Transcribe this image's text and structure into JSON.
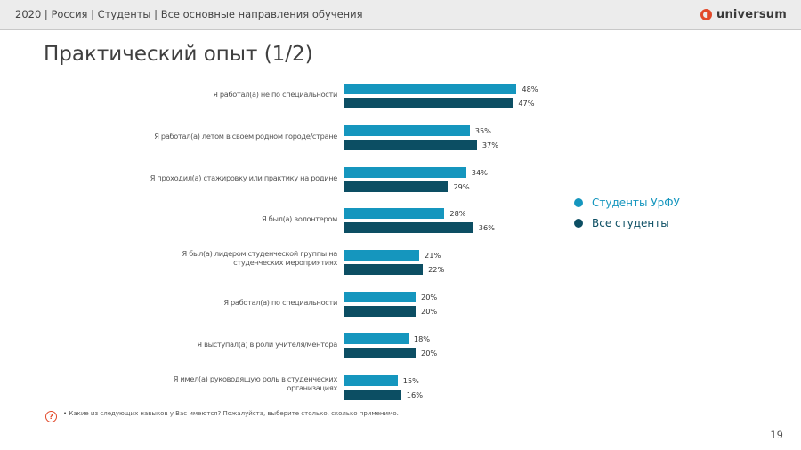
{
  "header": {
    "breadcrumb": "2020 | Россия | Студенты | Все основные направления обучения",
    "logo_text": "universum",
    "logo_icon": "universum-logo-icon"
  },
  "page_title": "Практический опыт (1/2)",
  "colors": {
    "series1": "#1596be",
    "series2": "#0c4e63",
    "accent": "#e2492a"
  },
  "chart_data": {
    "type": "bar",
    "orientation": "horizontal",
    "title": "",
    "xlabel": "",
    "ylabel": "",
    "xlim": [
      0,
      100
    ],
    "grid": false,
    "legend_position": "right",
    "categories": [
      "Я работал(а) не по специальности",
      "Я работал(а) летом в своем родном городе/стране",
      "Я проходил(а) стажировку или практику на родине",
      "Я был(а) волонтером",
      "Я был(а) лидером студенческой группы на студенческих мероприятиях",
      "Я работал(а) по специальности",
      "Я выступал(а) в роли учителя/ментора",
      "Я имел(а) руководящую роль в студенческих организациях"
    ],
    "series": [
      {
        "name": "Студенты УрФУ",
        "color": "#1596be",
        "values": [
          48,
          35,
          34,
          28,
          21,
          20,
          18,
          15
        ],
        "labels": [
          "48%",
          "35%",
          "34%",
          "28%",
          "21%",
          "20%",
          "18%",
          "15%"
        ]
      },
      {
        "name": "Все студенты",
        "color": "#0c4e63",
        "values": [
          47,
          37,
          29,
          36,
          22,
          20,
          20,
          16
        ],
        "labels": [
          "47%",
          "37%",
          "29%",
          "36%",
          "22%",
          "20%",
          "20%",
          "16%"
        ]
      }
    ]
  },
  "footnote": {
    "text": "•  Какие из следующих навыков у Вас имеются? Пожалуйста, выберите столько, сколько применимо.",
    "icon": "question-icon",
    "icon_glyph": "?"
  },
  "page_number": "19"
}
